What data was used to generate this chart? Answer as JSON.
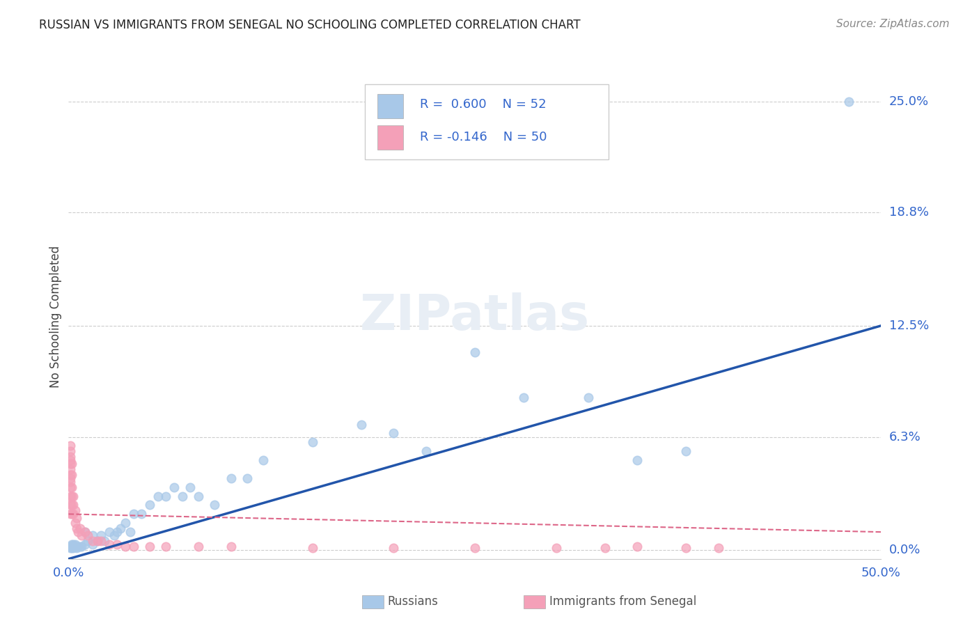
{
  "title": "RUSSIAN VS IMMIGRANTS FROM SENEGAL NO SCHOOLING COMPLETED CORRELATION CHART",
  "source": "Source: ZipAtlas.com",
  "ylabel_label": "No Schooling Completed",
  "russian_color": "#a8c8e8",
  "senegal_color": "#f4a0b8",
  "russian_line_color": "#2255aa",
  "senegal_line_color": "#dd6688",
  "background_color": "#ffffff",
  "grid_color": "#cccccc",
  "russians_x": [
    0.001,
    0.001,
    0.002,
    0.002,
    0.002,
    0.003,
    0.003,
    0.003,
    0.004,
    0.004,
    0.005,
    0.005,
    0.006,
    0.007,
    0.008,
    0.01,
    0.01,
    0.012,
    0.015,
    0.015,
    0.018,
    0.02,
    0.022,
    0.025,
    0.028,
    0.03,
    0.032,
    0.035,
    0.038,
    0.04,
    0.045,
    0.05,
    0.055,
    0.06,
    0.065,
    0.07,
    0.075,
    0.08,
    0.09,
    0.1,
    0.11,
    0.12,
    0.15,
    0.18,
    0.2,
    0.22,
    0.25,
    0.28,
    0.32,
    0.35,
    0.38,
    0.48
  ],
  "russians_y": [
    0.001,
    0.002,
    0.001,
    0.002,
    0.003,
    0.001,
    0.002,
    0.003,
    0.002,
    0.003,
    0.001,
    0.002,
    0.002,
    0.002,
    0.002,
    0.003,
    0.01,
    0.005,
    0.003,
    0.008,
    0.005,
    0.008,
    0.005,
    0.01,
    0.008,
    0.01,
    0.012,
    0.015,
    0.01,
    0.02,
    0.02,
    0.025,
    0.03,
    0.03,
    0.035,
    0.03,
    0.035,
    0.03,
    0.025,
    0.04,
    0.04,
    0.05,
    0.06,
    0.07,
    0.065,
    0.055,
    0.11,
    0.085,
    0.085,
    0.05,
    0.055,
    0.25
  ],
  "senegal_x": [
    0.001,
    0.001,
    0.001,
    0.001,
    0.001,
    0.001,
    0.001,
    0.001,
    0.001,
    0.001,
    0.001,
    0.001,
    0.001,
    0.002,
    0.002,
    0.002,
    0.002,
    0.002,
    0.002,
    0.003,
    0.003,
    0.003,
    0.004,
    0.004,
    0.005,
    0.005,
    0.006,
    0.007,
    0.008,
    0.01,
    0.012,
    0.015,
    0.018,
    0.02,
    0.025,
    0.03,
    0.035,
    0.04,
    0.05,
    0.06,
    0.08,
    0.1,
    0.15,
    0.2,
    0.25,
    0.3,
    0.33,
    0.35,
    0.38,
    0.4
  ],
  "senegal_y": [
    0.02,
    0.025,
    0.03,
    0.035,
    0.038,
    0.04,
    0.042,
    0.045,
    0.048,
    0.05,
    0.052,
    0.055,
    0.058,
    0.02,
    0.025,
    0.03,
    0.035,
    0.042,
    0.048,
    0.02,
    0.025,
    0.03,
    0.015,
    0.022,
    0.012,
    0.018,
    0.01,
    0.012,
    0.008,
    0.01,
    0.008,
    0.005,
    0.005,
    0.005,
    0.003,
    0.003,
    0.002,
    0.002,
    0.002,
    0.002,
    0.002,
    0.002,
    0.001,
    0.001,
    0.001,
    0.001,
    0.001,
    0.002,
    0.001,
    0.001
  ],
  "xlim": [
    0.0,
    0.5
  ],
  "ylim": [
    -0.005,
    0.265
  ],
  "yticks": [
    0.0,
    0.063,
    0.125,
    0.188,
    0.25
  ],
  "ytick_labels": [
    "0.0%",
    "6.3%",
    "12.5%",
    "18.8%",
    "25.0%"
  ],
  "xticks": [
    0.0,
    0.5
  ],
  "xtick_labels": [
    "0.0%",
    "50.0%"
  ],
  "marker_size": 80,
  "russian_line_x0": 0.0,
  "russian_line_y0": -0.005,
  "russian_line_x1": 0.5,
  "russian_line_y1": 0.125,
  "senegal_line_x0": 0.0,
  "senegal_line_y0": 0.02,
  "senegal_line_x1": 0.5,
  "senegal_line_y1": 0.01
}
